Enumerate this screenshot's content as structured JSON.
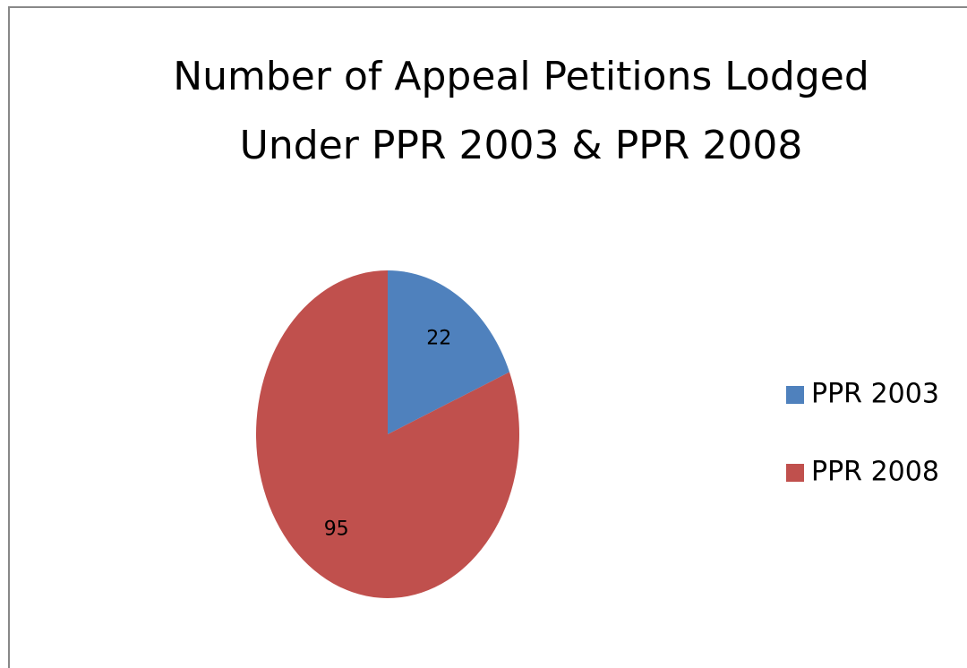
{
  "chart_data": {
    "type": "pie",
    "title": [
      "Number of Appeal Petitions Lodged",
      "Under PPR 2003 & PPR 2008"
    ],
    "categories": [
      "PPR 2003",
      "PPR 2008"
    ],
    "values": [
      22,
      95
    ],
    "colors": [
      "#4f81bd",
      "#c0504d"
    ],
    "legend": "right"
  }
}
